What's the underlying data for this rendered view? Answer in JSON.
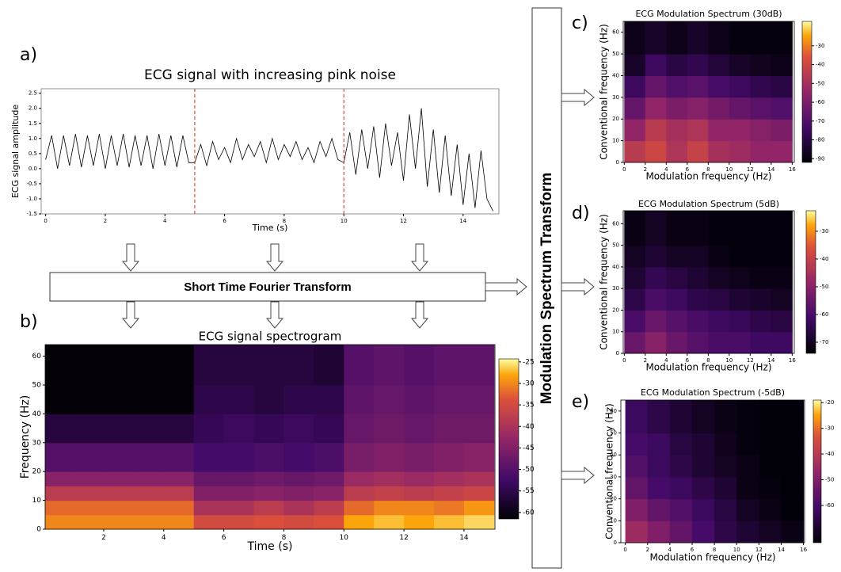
{
  "diagram": {
    "panels": [
      "a)",
      "b)",
      "c)",
      "d)",
      "e)"
    ],
    "stft_label": "Short Time Fourier Transform",
    "mst_label": "Modulation Spectrum Transform"
  },
  "chart_data": [
    {
      "type": "line",
      "title": "ECG signal with increasing pink noise",
      "xlabel": "Time (s)",
      "ylabel": "ECG signal amplitude",
      "color": "#000000",
      "x": [
        0,
        0.2,
        0.4,
        0.6,
        0.8,
        1,
        1.2,
        1.4,
        1.6,
        1.8,
        2,
        2.2,
        2.4,
        2.6,
        2.8,
        3,
        3.2,
        3.4,
        3.6,
        3.8,
        4,
        4.2,
        4.4,
        4.6,
        4.8,
        5,
        5.2,
        5.4,
        5.6,
        5.8,
        6,
        6.2,
        6.4,
        6.6,
        6.8,
        7,
        7.2,
        7.4,
        7.6,
        7.8,
        8,
        8.2,
        8.4,
        8.6,
        8.8,
        9,
        9.2,
        9.4,
        9.6,
        9.8,
        10,
        10.2,
        10.4,
        10.6,
        10.8,
        11,
        11.2,
        11.4,
        11.6,
        11.8,
        12,
        12.2,
        12.4,
        12.6,
        12.8,
        13,
        13.2,
        13.4,
        13.6,
        13.8,
        14,
        14.2,
        14.4,
        14.6,
        14.8,
        15
      ],
      "values": [
        0.3,
        1.1,
        0.0,
        1.1,
        0.1,
        1.15,
        0.05,
        1.1,
        0.1,
        1.15,
        0.0,
        1.1,
        0.1,
        1.15,
        0.05,
        1.1,
        0.1,
        1.1,
        0.0,
        1.15,
        0.1,
        1.1,
        0.05,
        1.1,
        0.2,
        0.2,
        0.8,
        0.1,
        0.9,
        0.3,
        0.7,
        0.2,
        1.0,
        0.3,
        0.8,
        0.4,
        0.9,
        0.2,
        1.0,
        0.3,
        0.8,
        0.4,
        0.9,
        0.3,
        0.7,
        0.2,
        0.9,
        0.4,
        1.0,
        0.3,
        0.2,
        1.2,
        -0.2,
        1.3,
        0.0,
        1.4,
        -0.3,
        1.5,
        0.1,
        1.2,
        -0.4,
        1.8,
        0.0,
        2.0,
        -0.6,
        1.3,
        -0.8,
        1.1,
        -0.9,
        0.8,
        -1.2,
        0.5,
        -1.3,
        0.6,
        -1.0,
        -1.4
      ],
      "xlim": [
        -0.15,
        15.2
      ],
      "ylim": [
        -1.5,
        2.65
      ],
      "xticks": [
        0,
        2,
        4,
        6,
        8,
        10,
        12,
        14
      ],
      "yticks": [
        2.5,
        {
          "value": 2,
          "label": "2.0"
        },
        1.5,
        {
          "value": 1,
          "label": "1.0"
        },
        0.5,
        {
          "value": 0,
          "label": "0.0"
        },
        -0.5,
        {
          "value": -1,
          "label": "-1.0"
        },
        -1.5
      ],
      "vlines": [
        5,
        10
      ],
      "vline_color": "#e8201a"
    },
    {
      "type": "heatmap",
      "title": "ECG signal spectrogram",
      "xlabel": "Time (s)",
      "ylabel": "Frequency (Hz)",
      "colormap": "inferno",
      "x_edges": [
        0,
        1,
        2,
        3,
        4,
        5,
        6,
        7,
        8,
        9,
        10,
        11,
        12,
        13,
        14,
        15
      ],
      "y_edges": [
        0,
        5,
        10,
        15,
        20,
        30,
        40,
        50,
        64
      ],
      "z": [
        [
          -30,
          -30,
          -30,
          -30,
          -30,
          -35,
          -35,
          -34,
          -35,
          -34,
          -28,
          -27,
          -28,
          -27,
          -26
        ],
        [
          -32,
          -32,
          -32,
          -32,
          -32,
          -40,
          -40,
          -38,
          -40,
          -38,
          -32,
          -30,
          -30,
          -31,
          -29
        ],
        [
          -38,
          -38,
          -38,
          -38,
          -38,
          -45,
          -45,
          -44,
          -45,
          -44,
          -38,
          -37,
          -38,
          -37,
          -36
        ],
        [
          -44,
          -44,
          -44,
          -44,
          -44,
          -48,
          -48,
          -47,
          -48,
          -47,
          -42,
          -41,
          -42,
          -41,
          -40
        ],
        [
          -50,
          -50,
          -50,
          -50,
          -50,
          -52,
          -52,
          -51,
          -52,
          -51,
          -46,
          -45,
          -46,
          -45,
          -44
        ],
        [
          -56,
          -56,
          -56,
          -56,
          -56,
          -54,
          -53,
          -54,
          -53,
          -54,
          -48,
          -47,
          -48,
          -47,
          -47
        ],
        [
          -61,
          -61,
          -61,
          -61,
          -61,
          -55,
          -55,
          -56,
          -55,
          -55,
          -49,
          -48,
          -49,
          -48,
          -48
        ],
        [
          -61,
          -61,
          -61,
          -61,
          -61,
          -56,
          -56,
          -56,
          -56,
          -57,
          -50,
          -49,
          -50,
          -49,
          -49
        ]
      ],
      "xlim": [
        0.05,
        15.03
      ],
      "ylim": [
        0,
        64
      ],
      "xticks": [
        2,
        4,
        6,
        8,
        10,
        12,
        14
      ],
      "yticks": [
        0,
        10,
        20,
        30,
        40,
        50,
        60
      ],
      "clim": [
        -61.5,
        -24.3
      ],
      "cticks": [
        -25,
        -30,
        -35,
        -40,
        -45,
        -50,
        -55,
        -60
      ]
    },
    {
      "type": "heatmap",
      "title": "ECG Modulation Spectrum (30dB)",
      "xlabel": "Modulation frequency (Hz)",
      "ylabel": "Conventional frequency (Hz)",
      "colormap": "inferno",
      "x_edges": [
        0,
        2,
        4,
        6,
        8,
        10,
        12,
        14,
        16
      ],
      "y_edges": [
        0,
        10,
        20,
        30,
        40,
        50,
        65
      ],
      "z": [
        [
          -45,
          -40,
          -48,
          -42,
          -50,
          -52,
          -55,
          -55
        ],
        [
          -55,
          -45,
          -50,
          -48,
          -55,
          -55,
          -58,
          -60
        ],
        [
          -65,
          -55,
          -60,
          -58,
          -62,
          -65,
          -68,
          -70
        ],
        [
          -75,
          -65,
          -70,
          -68,
          -72,
          -75,
          -78,
          -80
        ],
        [
          -85,
          -75,
          -80,
          -78,
          -82,
          -85,
          -87,
          -88
        ],
        [
          -88,
          -85,
          -88,
          -85,
          -88,
          -90,
          -90,
          -90
        ]
      ],
      "xlim": [
        -0.1,
        16.2
      ],
      "ylim": [
        0,
        65
      ],
      "xticks": [
        0,
        2,
        4,
        6,
        8,
        10,
        12,
        14,
        16
      ],
      "yticks": [
        0,
        10,
        20,
        30,
        40,
        50,
        60
      ],
      "clim": [
        -92,
        -17
      ],
      "cticks": [
        -30,
        -40,
        -50,
        -60,
        -70,
        -80,
        -90
      ]
    },
    {
      "type": "heatmap",
      "title": "ECG Modulation Spectrum (5dB)",
      "xlabel": "Modulation frequency (Hz)",
      "ylabel": "Conventional frequency (Hz)",
      "colormap": "inferno",
      "x_edges": [
        0,
        2,
        4,
        6,
        8,
        10,
        12,
        14,
        16
      ],
      "y_edges": [
        0,
        10,
        20,
        30,
        40,
        50,
        66
      ],
      "z": [
        [
          -55,
          -50,
          -55,
          -58,
          -60,
          -60,
          -62,
          -62
        ],
        [
          -60,
          -55,
          -58,
          -60,
          -62,
          -63,
          -65,
          -66
        ],
        [
          -65,
          -60,
          -62,
          -65,
          -66,
          -68,
          -69,
          -70
        ],
        [
          -68,
          -64,
          -66,
          -68,
          -70,
          -71,
          -72,
          -72
        ],
        [
          -70,
          -68,
          -70,
          -70,
          -72,
          -73,
          -73,
          -73
        ],
        [
          -72,
          -70,
          -72,
          -72,
          -73,
          -73,
          -73,
          -73
        ]
      ],
      "xlim": [
        -0.1,
        16.2
      ],
      "ylim": [
        0,
        66
      ],
      "xticks": [
        0,
        2,
        4,
        6,
        8,
        10,
        12,
        14,
        16
      ],
      "yticks": [
        0,
        10,
        20,
        30,
        40,
        50,
        60
      ],
      "clim": [
        -74,
        -22.6
      ],
      "cticks": [
        -30,
        -40,
        -50,
        -60,
        -70
      ]
    },
    {
      "type": "heatmap",
      "title": "ECG Modulation Spectrum (-5dB)",
      "xlabel": "Modulation frequency (Hz)",
      "ylabel": "Conventional frequency (Hz)",
      "colormap": "inferno",
      "x_edges": [
        0,
        2,
        4,
        6,
        8,
        10,
        12,
        14,
        16
      ],
      "y_edges": [
        0,
        10,
        20,
        30,
        40,
        50,
        65
      ],
      "z": [
        [
          -45,
          -50,
          -55,
          -60,
          -65,
          -68,
          -70,
          -72
        ],
        [
          -50,
          -55,
          -58,
          -62,
          -66,
          -70,
          -72,
          -74
        ],
        [
          -55,
          -60,
          -62,
          -65,
          -68,
          -72,
          -73,
          -74
        ],
        [
          -58,
          -62,
          -65,
          -68,
          -70,
          -72,
          -74,
          -74
        ],
        [
          -60,
          -62,
          -66,
          -68,
          -71,
          -73,
          -74,
          -74
        ],
        [
          -62,
          -65,
          -68,
          -70,
          -72,
          -73,
          -74,
          -74
        ]
      ],
      "xlim": [
        -0.4,
        16.1
      ],
      "ylim": [
        0,
        65
      ],
      "xticks": [
        0,
        2,
        4,
        6,
        8,
        10,
        12,
        14,
        16
      ],
      "yticks": [
        0,
        10,
        20,
        30,
        40,
        50,
        60
      ],
      "clim": [
        -74.5,
        -19
      ],
      "cticks": [
        -20,
        -30,
        -40,
        -50,
        -60
      ]
    }
  ]
}
